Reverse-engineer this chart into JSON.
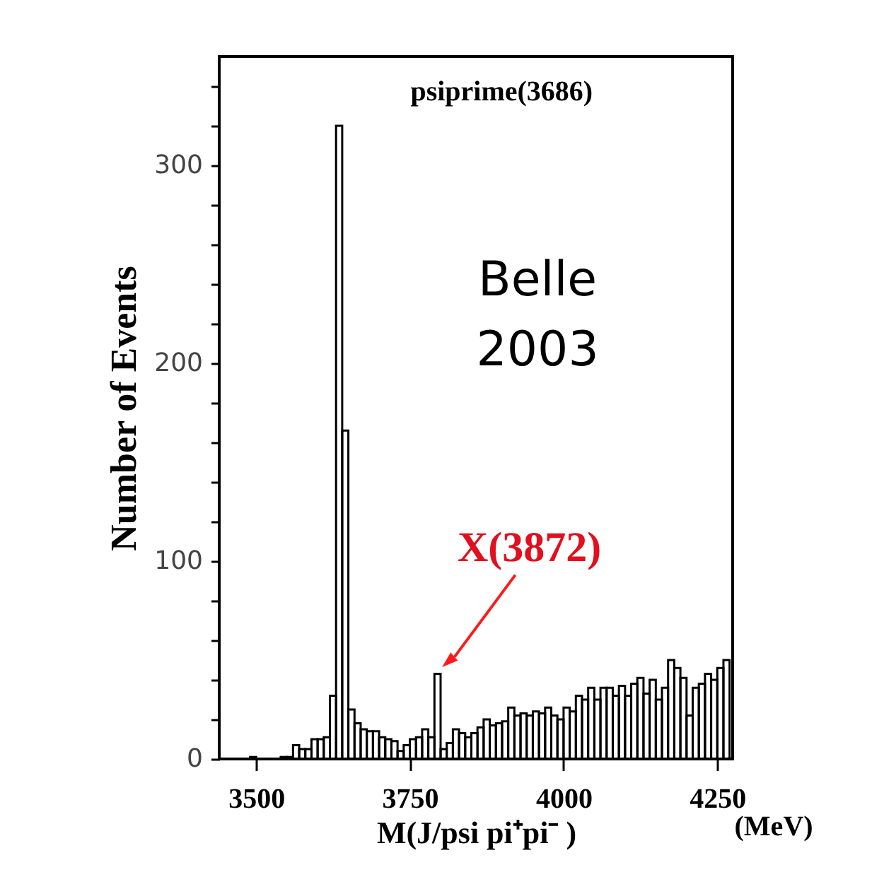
{
  "chart_data": {
    "type": "histogram",
    "xlabel": "M(J/psi pi⁺pi⁻ )",
    "ylabel": "Number of Events",
    "bins": [
      3480,
      3490,
      3500,
      3510,
      3520,
      3530,
      3540,
      3550,
      3560,
      3570,
      3580,
      3590,
      3600,
      3610,
      3620,
      3630,
      3640,
      3650,
      3660,
      3670,
      3680,
      3690,
      3700,
      3710,
      3720,
      3730,
      3740,
      3750,
      3760,
      3770,
      3780,
      3790,
      3800,
      3810,
      3820,
      3830,
      3840,
      3850,
      3860,
      3870,
      3880,
      3890,
      3900,
      3910,
      3920,
      3930,
      3940,
      3950,
      3960,
      3970,
      3980,
      3990,
      4000,
      4010,
      4020,
      4030,
      4040,
      4050,
      4060,
      4070,
      4080,
      4090,
      4100,
      4110,
      4120,
      4130,
      4140,
      4150,
      4160,
      4170,
      4180,
      4190,
      4200,
      4210,
      4220,
      4230,
      4240,
      4250,
      4260,
      4270
    ],
    "values": [
      0,
      1,
      0,
      0,
      0,
      0,
      1,
      1,
      7,
      5,
      5,
      10,
      10,
      11,
      32,
      320,
      166,
      25,
      18,
      15,
      14,
      14,
      11,
      10,
      9,
      4,
      7,
      10,
      11,
      15,
      11,
      43,
      5,
      8,
      15,
      13,
      11,
      13,
      16,
      20,
      17,
      18,
      19,
      26,
      22,
      23,
      22,
      24,
      23,
      26,
      22,
      20,
      26,
      24,
      32,
      30,
      36,
      30,
      36,
      36,
      32,
      37,
      32,
      38,
      41,
      33,
      40,
      30,
      36,
      50,
      46,
      41,
      22,
      36,
      38,
      43,
      40,
      46,
      50
    ],
    "color": "#000000",
    "xlim": [
      3440,
      4275
    ],
    "xticks": [
      3500,
      3750,
      4000,
      4250
    ],
    "ylim": [
      0,
      355
    ],
    "yticks": [
      0,
      {
        "value": 20,
        "label": null
      },
      {
        "value": 40,
        "label": null
      },
      {
        "value": 60,
        "label": null
      },
      {
        "value": 80,
        "label": null
      },
      100,
      {
        "value": 120,
        "label": null
      },
      {
        "value": 140,
        "label": null
      },
      {
        "value": 160,
        "label": null
      },
      {
        "value": 180,
        "label": null
      },
      200,
      {
        "value": 220,
        "label": null
      },
      {
        "value": 240,
        "label": null
      },
      {
        "value": 260,
        "label": null
      },
      {
        "value": 280,
        "label": null
      },
      300,
      {
        "value": 320,
        "label": null
      },
      {
        "value": 340,
        "label": null
      }
    ],
    "grid": false,
    "annotations": [
      "psiprime(3686)",
      "Belle",
      "2003",
      {
        "text": "X(3872)",
        "x": 3795,
        "y": 43
      },
      "(MeV)"
    ]
  }
}
